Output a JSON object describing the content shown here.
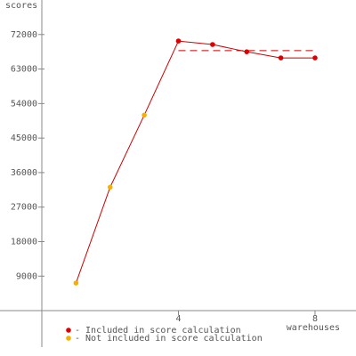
{
  "chart_data": {
    "type": "line",
    "y_label": "scores",
    "x_label": "warehouses",
    "x": [
      1,
      2,
      3,
      4,
      5,
      6,
      7,
      8
    ],
    "values": [
      7200,
      32200,
      51000,
      70300,
      69400,
      67500,
      65900,
      65900
    ],
    "included": [
      false,
      false,
      false,
      true,
      true,
      true,
      true,
      true
    ],
    "line_color": "#cc0000",
    "score": 67800,
    "legend": [
      {
        "name": "- Included in score calculation",
        "color": "#dd0000"
      },
      {
        "name": "- Not included in score calculation",
        "color": "#f5b000"
      }
    ],
    "xlim": [
      0,
      9.2
    ],
    "xticks": [
      4,
      8
    ],
    "ylim": [
      -9500,
      81000
    ],
    "yticks": [
      9000,
      18000,
      27000,
      36000,
      45000,
      54000,
      63000,
      72000
    ]
  }
}
